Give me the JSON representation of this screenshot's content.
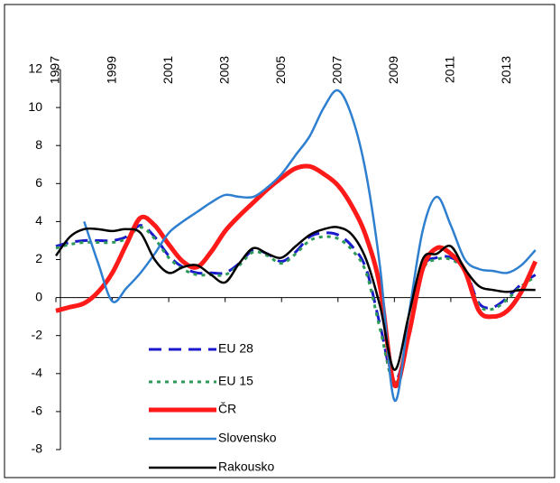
{
  "chart_data": {
    "type": "line",
    "x": [
      1997,
      1997.5,
      1998,
      1998.5,
      1999,
      1999.5,
      2000,
      2000.5,
      2001,
      2001.5,
      2002,
      2002.5,
      2003,
      2003.5,
      2004,
      2004.5,
      2005,
      2005.5,
      2006,
      2006.5,
      2007,
      2007.5,
      2008,
      2008.5,
      2009,
      2009.5,
      2010,
      2010.5,
      2011,
      2011.5,
      2012,
      2012.5,
      2013,
      2013.5,
      2014
    ],
    "xlim": [
      1997,
      2014.2
    ],
    "xticks": [
      1997,
      1999,
      2001,
      2003,
      2005,
      2007,
      2009,
      2011,
      2013
    ],
    "ylim": [
      -8,
      12
    ],
    "yticks": [
      -8,
      -6,
      -4,
      -2,
      0,
      2,
      4,
      6,
      8,
      10,
      12
    ],
    "legend": "lower left",
    "series": [
      {
        "name": "EU 28",
        "color": "#1a1acc",
        "style": "dashed",
        "width": 3,
        "values": [
          2.7,
          2.9,
          3.0,
          3.0,
          3.0,
          3.2,
          3.8,
          3.2,
          2.2,
          1.6,
          1.3,
          1.3,
          1.3,
          1.8,
          2.5,
          2.3,
          1.9,
          2.4,
          3.2,
          3.4,
          3.3,
          2.7,
          1.5,
          -1.5,
          -4.4,
          -2.0,
          1.5,
          2.1,
          2.1,
          1.5,
          -0.3,
          -0.5,
          0.0,
          0.7,
          1.2
        ]
      },
      {
        "name": "EU 15",
        "color": "#2e9a5a",
        "style": "dotted",
        "width": 3,
        "values": [
          2.6,
          2.8,
          2.9,
          2.9,
          2.9,
          3.1,
          3.7,
          3.1,
          2.1,
          1.5,
          1.2,
          1.2,
          1.2,
          1.7,
          2.4,
          2.2,
          1.8,
          2.3,
          3.0,
          3.2,
          3.1,
          2.5,
          1.3,
          -1.7,
          -4.5,
          -2.1,
          1.4,
          2.0,
          2.0,
          1.4,
          -0.4,
          -0.6,
          -0.1,
          0.6,
          1.1
        ]
      },
      {
        "name": "ČR",
        "color": "#ff1a1a",
        "style": "solid",
        "width": 5,
        "values": [
          -0.7,
          -0.5,
          -0.3,
          0.3,
          1.3,
          2.8,
          4.2,
          3.8,
          2.8,
          1.9,
          1.6,
          2.4,
          3.5,
          4.3,
          5.0,
          5.7,
          6.3,
          6.8,
          6.9,
          6.5,
          5.9,
          4.8,
          3.2,
          0.5,
          -4.6,
          -2.0,
          1.5,
          2.6,
          2.3,
          1.4,
          -0.7,
          -1.0,
          -0.7,
          0.3,
          1.9
        ]
      },
      {
        "name": "Slovensko",
        "color": "#2e7fd0",
        "style": "solid",
        "width": 2.5,
        "values": [
          null,
          null,
          4.0,
          1.8,
          -0.2,
          0.5,
          1.3,
          2.3,
          3.4,
          4.0,
          4.5,
          5.0,
          5.4,
          5.3,
          5.3,
          5.8,
          6.5,
          7.5,
          8.5,
          10.0,
          10.9,
          9.5,
          6.5,
          1.5,
          -5.4,
          -1.0,
          3.5,
          5.3,
          3.8,
          2.0,
          1.5,
          1.4,
          1.3,
          1.7,
          2.5
        ]
      },
      {
        "name": "Rakousko",
        "color": "#000000",
        "style": "solid",
        "width": 2.5,
        "values": [
          2.2,
          3.2,
          3.6,
          3.6,
          3.5,
          3.6,
          3.4,
          2.0,
          1.3,
          1.6,
          1.7,
          1.2,
          0.8,
          1.8,
          2.6,
          2.3,
          2.1,
          2.7,
          3.3,
          3.6,
          3.7,
          3.3,
          2.0,
          -0.5,
          -3.8,
          -1.0,
          2.0,
          2.3,
          2.7,
          1.5,
          0.6,
          0.4,
          0.3,
          0.4,
          0.4
        ]
      }
    ]
  }
}
